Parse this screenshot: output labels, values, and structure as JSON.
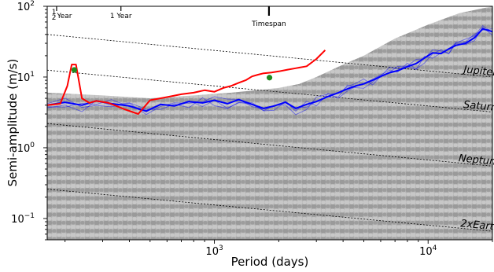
{
  "chart_data": {
    "type": "line",
    "xlabel": "Period (days)",
    "ylabel": "Semi-amplitude (m/s)",
    "xscale": "log",
    "yscale": "log",
    "xlim": [
      165,
      20000
    ],
    "ylim": [
      0.05,
      100
    ],
    "x_ticks": [
      {
        "value": 1000,
        "base": "10",
        "exp": "3"
      },
      {
        "value": 10000,
        "base": "10",
        "exp": "4"
      }
    ],
    "y_ticks": [
      {
        "value": 0.1,
        "base": "10",
        "exp": "−1"
      },
      {
        "value": 1,
        "base": "10",
        "exp": "0"
      },
      {
        "value": 10,
        "base": "10",
        "exp": "1"
      },
      {
        "value": 100,
        "base": "10",
        "exp": "2"
      }
    ],
    "top_markers": [
      {
        "label": "Year",
        "frac": "1/2",
        "value": 182.6
      },
      {
        "label": "1 Year",
        "value": 365.25
      },
      {
        "label": "Timespan",
        "value": 1800
      }
    ],
    "planet_lines": [
      {
        "name": "Jupiter",
        "points": [
          [
            165,
            40
          ],
          [
            20000,
            10
          ]
        ]
      },
      {
        "name": "Saturn",
        "points": [
          [
            165,
            12.5
          ],
          [
            20000,
            3.2
          ]
        ]
      },
      {
        "name": "Neptune",
        "points": [
          [
            165,
            2.2
          ],
          [
            20000,
            0.55
          ]
        ]
      },
      {
        "name": "2xEarth",
        "points": [
          [
            165,
            0.26
          ],
          [
            20000,
            0.066
          ]
        ]
      }
    ],
    "series": [
      {
        "color": "#0000ff",
        "x": [
          165,
          200,
          240,
          280,
          330,
          400,
          480,
          560,
          650,
          760,
          880,
          1000,
          1150,
          1300,
          1500,
          1700,
          1900,
          2150,
          2400,
          2700,
          3000,
          3400,
          3800,
          4200,
          4600,
          5000,
          5500,
          6000,
          6600,
          7200,
          8000,
          8800,
          9600,
          10500,
          11500,
          12500,
          13500,
          15000,
          16500,
          18000,
          20000
        ],
        "values": [
          4.0,
          4.4,
          4.0,
          4.6,
          4.2,
          3.9,
          3.3,
          4.1,
          3.9,
          4.5,
          4.3,
          4.7,
          4.2,
          4.8,
          4.1,
          3.6,
          3.9,
          4.4,
          3.6,
          4.1,
          4.5,
          5.3,
          6.0,
          6.8,
          7.5,
          8.0,
          9.0,
          10.2,
          11.5,
          12.3,
          14.0,
          15.5,
          18.5,
          22.0,
          21.5,
          25.0,
          28.0,
          30.0,
          36.0,
          48.0,
          44.0
        ]
      },
      {
        "color": "#ff0000",
        "x": [
          165,
          190,
          205,
          215,
          225,
          240,
          260,
          280,
          320,
          380,
          440,
          500,
          600,
          700,
          800,
          900,
          1000,
          1100,
          1200,
          1300,
          1400,
          1500,
          1600,
          1700,
          1850,
          2000,
          2200,
          2400,
          2700,
          3000,
          3300
        ],
        "values": [
          4.0,
          4.2,
          7.5,
          15.0,
          15.0,
          5.0,
          4.3,
          4.6,
          4.3,
          3.5,
          3.0,
          4.7,
          5.2,
          5.7,
          6.0,
          6.5,
          6.2,
          7.0,
          7.5,
          8.3,
          9.0,
          10.2,
          10.8,
          11.3,
          11.6,
          12.0,
          12.7,
          13.3,
          14.2,
          18.0,
          24.0
        ]
      }
    ],
    "points": [
      {
        "color": "#1e8a1e",
        "x": 221,
        "y": 12.6
      },
      {
        "color": "#1e8a1e",
        "x": 1810,
        "y": 9.8
      }
    ]
  }
}
